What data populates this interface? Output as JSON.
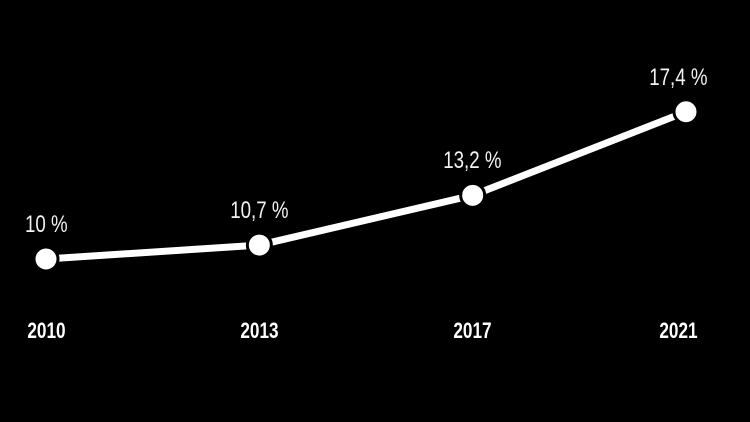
{
  "colors": {
    "background": "#000000",
    "line": "#ffffff",
    "marker_fill": "#ffffff",
    "marker_outline": "#000000",
    "value_label": "#f2f2f2",
    "axis_label": "#ffffff"
  },
  "chart_data": {
    "type": "line",
    "title": "",
    "xlabel": "",
    "ylabel": "",
    "categories": [
      "2010",
      "2013",
      "2017",
      "2021"
    ],
    "values": [
      10,
      10.7,
      13.2,
      17.4
    ],
    "point_labels": [
      "10 %",
      "10,7 %",
      "13,2 %",
      "17,4 %"
    ],
    "series": [
      {
        "name": "percentage",
        "values": [
          10,
          10.7,
          13.2,
          17.4
        ]
      }
    ],
    "ylim": [
      9.5,
      19.5
    ],
    "grid": false,
    "legend": false,
    "marker": "circle",
    "decimal_separator": ","
  }
}
